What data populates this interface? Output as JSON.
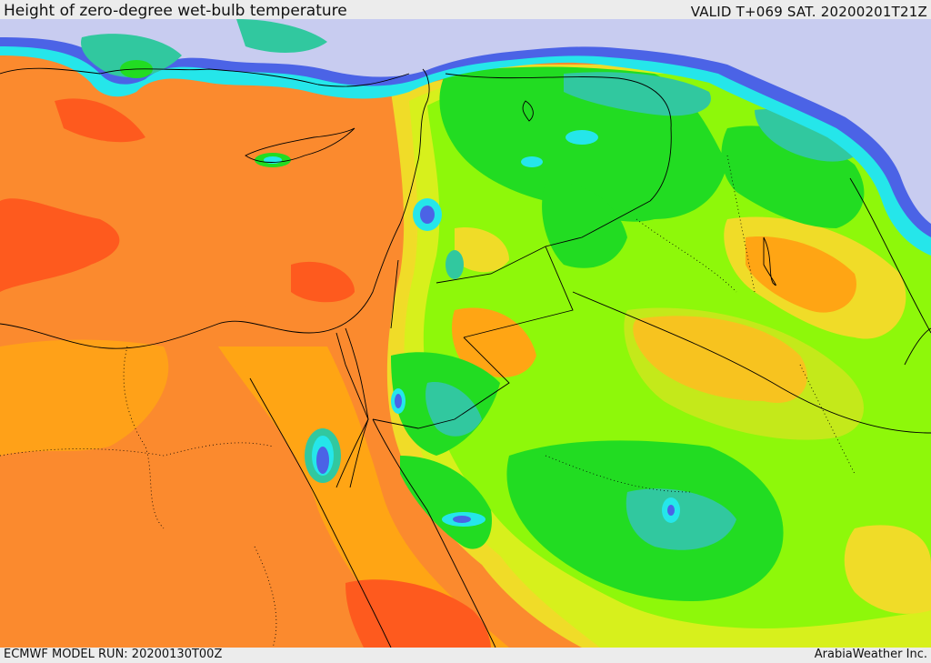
{
  "header": {
    "title": "Height of zero-degree wet-bulb temperature",
    "valid_time": "VALID T+069 SAT. 20200201T21Z"
  },
  "footer": {
    "model_run": "ECMWF MODEL RUN: 20200130T00Z",
    "credit": "ArabiaWeather Inc."
  },
  "palette": {
    "lavender": "#c8ccf0",
    "blue": "#4b63e6",
    "cyan": "#25e6ea",
    "teal": "#31c89f",
    "green": "#22dc22",
    "lime": "#8ef80a",
    "yellow_green": "#d7f01c",
    "yellow": "#f0dc28",
    "orange": "#ffa514",
    "dark_orange": "#fb8a2e",
    "red_orange": "#fe5a1e"
  }
}
